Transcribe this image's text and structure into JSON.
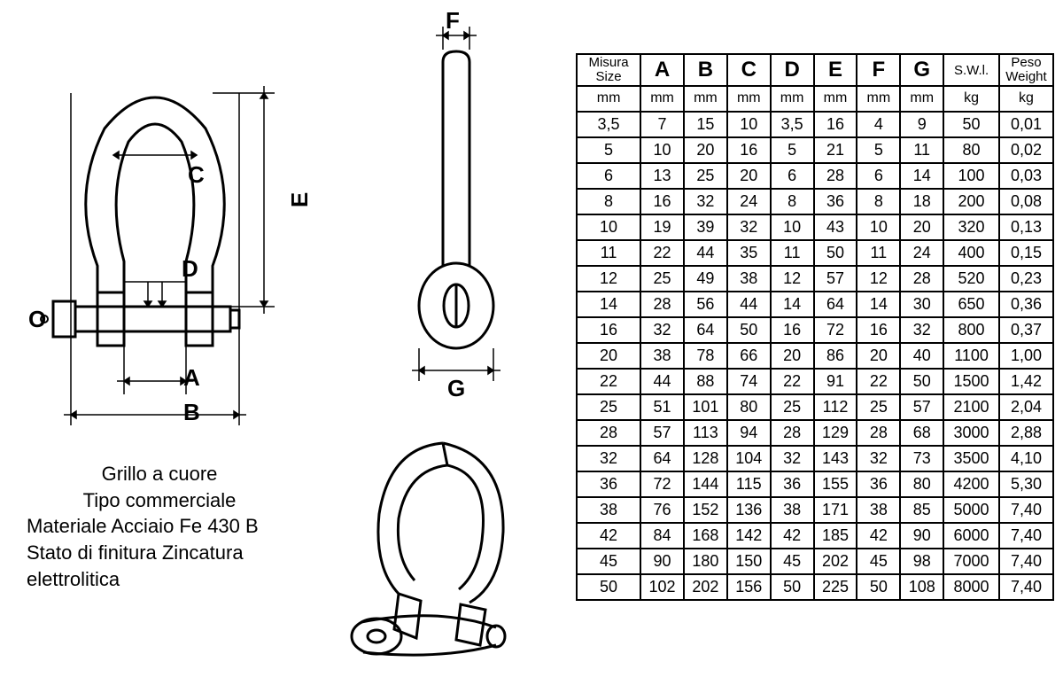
{
  "diagram": {
    "labels": {
      "A": "A",
      "B": "B",
      "C": "C",
      "D": "D",
      "E": "E",
      "F": "F",
      "G": "G",
      "O": "O"
    },
    "stroke": "#000000",
    "fill": "#ffffff",
    "line_width_main": 3,
    "line_width_dim": 1.5
  },
  "description": {
    "line1": "Grillo a cuore",
    "line2": "Tipo commerciale",
    "line3": "Materiale Acciaio Fe 430 B",
    "line4": "Stato di finitura Zincatura",
    "line5": "elettrolitica"
  },
  "table": {
    "border_color": "#000000",
    "background": "#ffffff",
    "text_color": "#000000",
    "font_size_body": 18,
    "font_size_head_big": 24,
    "font_size_head_small": 15,
    "columns": [
      {
        "key": "size",
        "h1": "Misura",
        "h2": "Size",
        "unit": "mm"
      },
      {
        "key": "A",
        "h1": "A",
        "unit": "mm",
        "big": true
      },
      {
        "key": "B",
        "h1": "B",
        "unit": "mm",
        "big": true
      },
      {
        "key": "C",
        "h1": "C",
        "unit": "mm",
        "big": true
      },
      {
        "key": "D",
        "h1": "D",
        "unit": "mm",
        "big": true
      },
      {
        "key": "E",
        "h1": "E",
        "unit": "mm",
        "big": true
      },
      {
        "key": "F",
        "h1": "F",
        "unit": "mm",
        "big": true
      },
      {
        "key": "G",
        "h1": "G",
        "unit": "mm",
        "big": true
      },
      {
        "key": "swl",
        "h1": "S.W.l.",
        "unit": "kg"
      },
      {
        "key": "peso",
        "h1": "Peso",
        "h2": "Weight",
        "unit": "kg"
      }
    ],
    "rows": [
      [
        "3,5",
        "7",
        "15",
        "10",
        "3,5",
        "16",
        "4",
        "9",
        "50",
        "0,01"
      ],
      [
        "5",
        "10",
        "20",
        "16",
        "5",
        "21",
        "5",
        "11",
        "80",
        "0,02"
      ],
      [
        "6",
        "13",
        "25",
        "20",
        "6",
        "28",
        "6",
        "14",
        "100",
        "0,03"
      ],
      [
        "8",
        "16",
        "32",
        "24",
        "8",
        "36",
        "8",
        "18",
        "200",
        "0,08"
      ],
      [
        "10",
        "19",
        "39",
        "32",
        "10",
        "43",
        "10",
        "20",
        "320",
        "0,13"
      ],
      [
        "11",
        "22",
        "44",
        "35",
        "11",
        "50",
        "11",
        "24",
        "400",
        "0,15"
      ],
      [
        "12",
        "25",
        "49",
        "38",
        "12",
        "57",
        "12",
        "28",
        "520",
        "0,23"
      ],
      [
        "14",
        "28",
        "56",
        "44",
        "14",
        "64",
        "14",
        "30",
        "650",
        "0,36"
      ],
      [
        "16",
        "32",
        "64",
        "50",
        "16",
        "72",
        "16",
        "32",
        "800",
        "0,37"
      ],
      [
        "20",
        "38",
        "78",
        "66",
        "20",
        "86",
        "20",
        "40",
        "1100",
        "1,00"
      ],
      [
        "22",
        "44",
        "88",
        "74",
        "22",
        "91",
        "22",
        "50",
        "1500",
        "1,42"
      ],
      [
        "25",
        "51",
        "101",
        "80",
        "25",
        "112",
        "25",
        "57",
        "2100",
        "2,04"
      ],
      [
        "28",
        "57",
        "113",
        "94",
        "28",
        "129",
        "28",
        "68",
        "3000",
        "2,88"
      ],
      [
        "32",
        "64",
        "128",
        "104",
        "32",
        "143",
        "32",
        "73",
        "3500",
        "4,10"
      ],
      [
        "36",
        "72",
        "144",
        "115",
        "36",
        "155",
        "36",
        "80",
        "4200",
        "5,30"
      ],
      [
        "38",
        "76",
        "152",
        "136",
        "38",
        "171",
        "38",
        "85",
        "5000",
        "7,40"
      ],
      [
        "42",
        "84",
        "168",
        "142",
        "42",
        "185",
        "42",
        "90",
        "6000",
        "7,40"
      ],
      [
        "45",
        "90",
        "180",
        "150",
        "45",
        "202",
        "45",
        "98",
        "7000",
        "7,40"
      ],
      [
        "50",
        "102",
        "202",
        "156",
        "50",
        "225",
        "50",
        "108",
        "8000",
        "7,40"
      ]
    ]
  }
}
